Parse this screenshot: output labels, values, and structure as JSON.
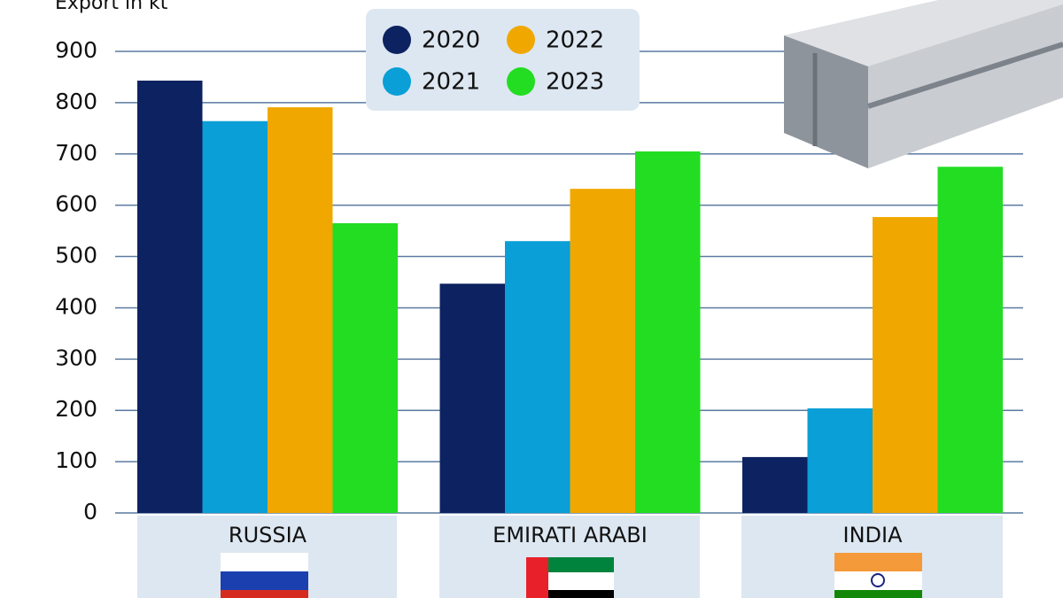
{
  "chart_data": {
    "type": "bar",
    "y_label": "Export in kt",
    "categories": [
      "RUSSIA",
      "EMIRATI ARABI",
      "INDIA"
    ],
    "series": [
      {
        "name": "2020",
        "color": "#0d2260",
        "values": [
          843,
          447,
          109
        ]
      },
      {
        "name": "2021",
        "color": "#0a9fd6",
        "values": [
          764,
          530,
          204
        ]
      },
      {
        "name": "2022",
        "color": "#f0a800",
        "values": [
          791,
          632,
          577
        ]
      },
      {
        "name": "2023",
        "color": "#22dd22",
        "values": [
          565,
          705,
          675
        ]
      }
    ],
    "ylim": [
      0,
      900
    ],
    "yticks": [
      0,
      100,
      200,
      300,
      400,
      500,
      600,
      700,
      800,
      900
    ],
    "grid": true
  }
}
